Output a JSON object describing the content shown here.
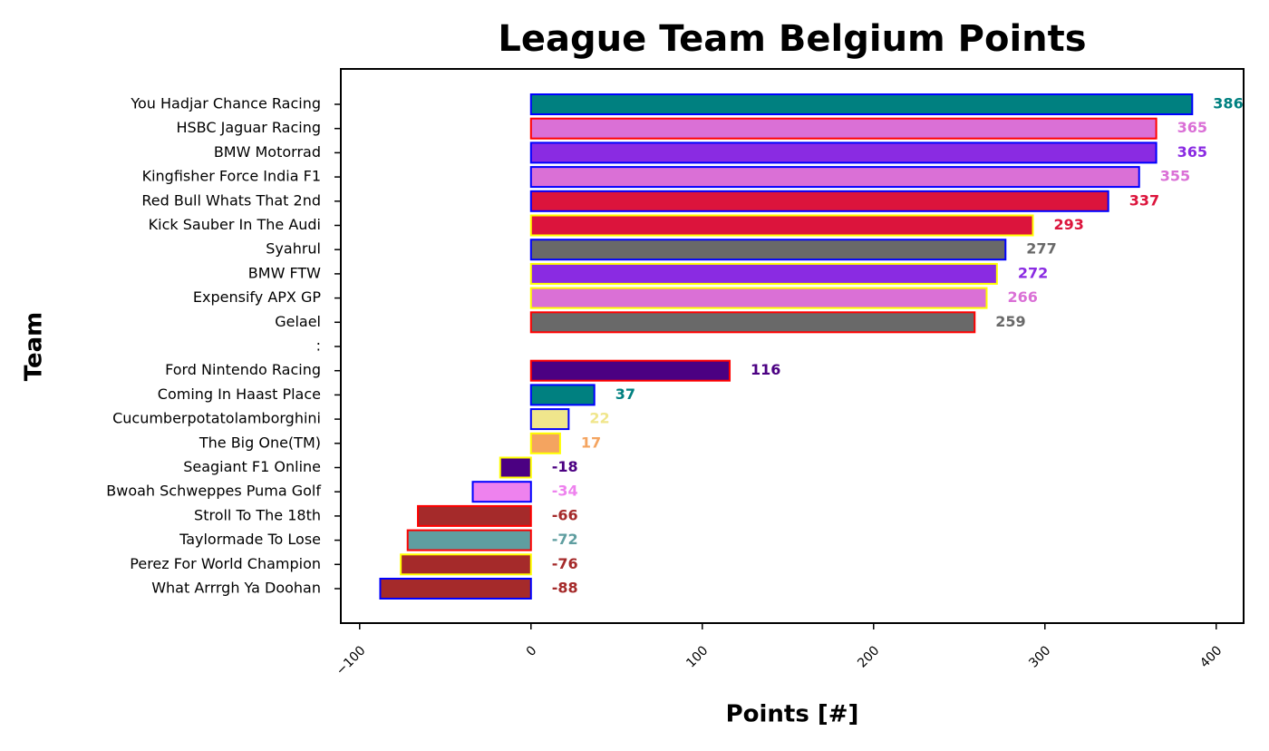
{
  "chart_data": {
    "type": "barh",
    "title": "League Team Belgium Points",
    "xlabel": "Points [#]",
    "ylabel": "Team",
    "categories": [
      "You Hadjar Chance Racing",
      "HSBC Jaguar Racing",
      "BMW Motorrad",
      "Kingfisher Force India F1",
      "Red Bull Whats That 2nd",
      "Kick Sauber In The Audi",
      "Syahrul",
      "BMW FTW",
      "Expensify APX GP",
      "Gelael",
      ":",
      "Ford Nintendo Racing",
      "Coming In Haast Place",
      "Cucumberpotatolamborghini",
      "The Big One(TM)",
      "Seagiant F1 Online",
      "Bwoah Schweppes Puma Golf",
      "Stroll To The 18th",
      "Taylormade To Lose",
      "Perez For World Champion",
      "What Arrrgh Ya Doohan"
    ],
    "values": [
      386,
      365,
      365,
      355,
      337,
      293,
      277,
      272,
      266,
      259,
      0,
      116,
      37,
      22,
      17,
      -18,
      -34,
      -66,
      -72,
      -76,
      -88
    ],
    "colors": [
      "#008080",
      "#da70d6",
      "#8a2be2",
      "#da70d6",
      "#dc143c",
      "#dc143c",
      "#696969",
      "#8a2be2",
      "#da70d6",
      "#696969",
      "#000000",
      "#4b0082",
      "#008080",
      "#f0e68c",
      "#f4a460",
      "#4b0082",
      "#ee82ee",
      "#a52a2a",
      "#5f9ea0",
      "#a52a2a",
      "#a52a2a"
    ],
    "edgecolors": [
      "#0000ff",
      "#ff0000",
      "#0000ff",
      "#0000ff",
      "#0000ff",
      "#ffff00",
      "#0000ff",
      "#ffff00",
      "#ffff00",
      "#ff0000",
      "#000000",
      "#ff0000",
      "#0000ff",
      "#0000ff",
      "#ffff00",
      "#ffff00",
      "#0000ff",
      "#ff0000",
      "#ff0000",
      "#ffff00",
      "#0000ff"
    ],
    "xlim": [
      -111,
      416
    ],
    "xticks": [
      {
        "value": -100,
        "label": "−100"
      },
      0,
      100,
      200,
      300,
      400
    ]
  }
}
